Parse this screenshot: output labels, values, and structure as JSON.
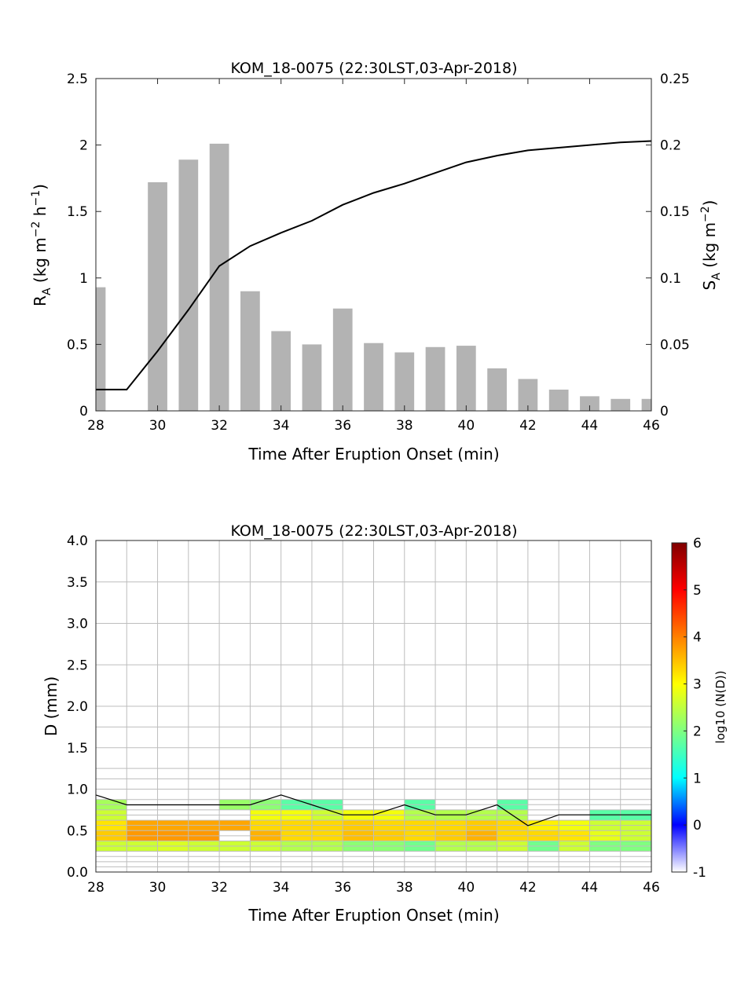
{
  "chart_data": [
    {
      "type": "bar",
      "title": "KOM_18-0075 (22:30LST,03-Apr-2018)",
      "xlabel": "Time After Eruption Onset (min)",
      "ylabel_left": "R_A (kg m^-2 h^-1)",
      "ylabel_right": "S_A (kg m^-2)",
      "xlim": [
        28,
        46
      ],
      "ylim_left": [
        0,
        2.5
      ],
      "ylim_right": [
        0,
        0.25
      ],
      "xticks": [
        "28",
        "30",
        "32",
        "34",
        "36",
        "38",
        "40",
        "42",
        "44",
        "46"
      ],
      "yticks_left": [
        "0",
        "0.5",
        "1",
        "1.5",
        "2",
        "2.5"
      ],
      "yticks_right": [
        "0",
        "0.05",
        "0.1",
        "0.15",
        "0.2",
        "0.25"
      ],
      "bar_color": "#b3b3b3",
      "line_color": "#000000",
      "bars": {
        "x": [
          28,
          30,
          31,
          32,
          33,
          34,
          35,
          36,
          37,
          38,
          39,
          40,
          41,
          42,
          43,
          44,
          45,
          46
        ],
        "values": [
          0.93,
          1.72,
          1.89,
          2.01,
          0.9,
          0.6,
          0.5,
          0.77,
          0.51,
          0.44,
          0.48,
          0.49,
          0.32,
          0.24,
          0.16,
          0.11,
          0.09,
          0.09
        ]
      },
      "line": {
        "x": [
          28,
          29,
          30,
          31,
          32,
          33,
          34,
          35,
          36,
          37,
          38,
          39,
          40,
          41,
          42,
          43,
          44,
          45,
          46
        ],
        "values": [
          0.016,
          0.016,
          0.045,
          0.076,
          0.109,
          0.124,
          0.134,
          0.143,
          0.155,
          0.164,
          0.171,
          0.179,
          0.187,
          0.192,
          0.196,
          0.198,
          0.2,
          0.202,
          0.203
        ]
      }
    },
    {
      "type": "heatmap",
      "title": "KOM_18-0075 (22:30LST,03-Apr-2018)",
      "xlabel": "Time After Eruption Onset (min)",
      "ylabel": "D (mm)",
      "colorbar_label": "log10 (N(D))",
      "xlim": [
        28,
        46
      ],
      "ylim": [
        0,
        4.0
      ],
      "clim": [
        -1,
        6
      ],
      "xticks": [
        "28",
        "30",
        "32",
        "34",
        "36",
        "38",
        "40",
        "42",
        "44",
        "46"
      ],
      "yticks": [
        "0.0",
        "0.5",
        "1.0",
        "1.5",
        "2.0",
        "2.5",
        "3.0",
        "3.5",
        "4.0"
      ],
      "cticks": [
        "-1",
        "0",
        "1",
        "2",
        "3",
        "4",
        "5",
        "6"
      ],
      "x_edges": [
        28,
        29,
        30,
        31,
        32,
        33,
        34,
        35,
        36,
        37,
        38,
        39,
        40,
        41,
        42,
        43,
        44,
        45,
        46
      ],
      "d_edges": [
        0,
        0.0625,
        0.125,
        0.1875,
        0.25,
        0.3125,
        0.375,
        0.4375,
        0.5,
        0.5625,
        0.625,
        0.6875,
        0.75,
        0.8125,
        0.875,
        1.0,
        1.125,
        1.25,
        1.5,
        1.75,
        2.0,
        2.5,
        3.0,
        3.5,
        4.0
      ],
      "cells": [
        [
          28,
          29,
          0.25,
          0.375,
          2.6
        ],
        [
          28,
          29,
          0.375,
          0.5,
          3.4
        ],
        [
          28,
          29,
          0.5,
          0.625,
          3.2
        ],
        [
          28,
          29,
          0.625,
          0.75,
          2.6
        ],
        [
          28,
          29,
          0.75,
          0.875,
          2.3
        ],
        [
          29,
          30,
          0.25,
          0.375,
          2.6
        ],
        [
          29,
          30,
          0.375,
          0.5,
          3.8
        ],
        [
          29,
          30,
          0.5,
          0.625,
          3.7
        ],
        [
          30,
          31,
          0.25,
          0.375,
          2.7
        ],
        [
          30,
          31,
          0.375,
          0.5,
          3.8
        ],
        [
          30,
          31,
          0.5,
          0.625,
          3.7
        ],
        [
          31,
          32,
          0.25,
          0.375,
          2.6
        ],
        [
          31,
          32,
          0.375,
          0.5,
          3.8
        ],
        [
          31,
          32,
          0.5,
          0.625,
          3.7
        ],
        [
          32,
          33,
          0.25,
          0.375,
          2.6
        ],
        [
          32,
          33,
          0.5,
          0.625,
          3.7
        ],
        [
          32,
          33,
          0.75,
          0.875,
          2.2
        ],
        [
          33,
          34,
          0.25,
          0.375,
          2.6
        ],
        [
          33,
          34,
          0.375,
          0.5,
          3.6
        ],
        [
          33,
          34,
          0.5,
          0.625,
          3.3
        ],
        [
          33,
          34,
          0.625,
          0.75,
          2.9
        ],
        [
          33,
          34,
          0.75,
          0.875,
          2.1
        ],
        [
          34,
          35,
          0.25,
          0.375,
          2.4
        ],
        [
          34,
          35,
          0.375,
          0.5,
          3.3
        ],
        [
          34,
          35,
          0.5,
          0.625,
          3.3
        ],
        [
          34,
          35,
          0.625,
          0.75,
          2.9
        ],
        [
          34,
          35,
          0.75,
          0.875,
          1.7
        ],
        [
          35,
          36,
          0.25,
          0.375,
          2.4
        ],
        [
          35,
          36,
          0.375,
          0.5,
          3.3
        ],
        [
          35,
          36,
          0.5,
          0.625,
          3.3
        ],
        [
          35,
          36,
          0.625,
          0.75,
          2.6
        ],
        [
          35,
          36,
          0.75,
          0.875,
          1.7
        ],
        [
          36,
          37,
          0.25,
          0.375,
          2.1
        ],
        [
          36,
          37,
          0.375,
          0.5,
          3.5
        ],
        [
          36,
          37,
          0.5,
          0.625,
          3.4
        ],
        [
          36,
          37,
          0.625,
          0.75,
          2.9
        ],
        [
          37,
          38,
          0.25,
          0.375,
          2.1
        ],
        [
          37,
          38,
          0.375,
          0.5,
          3.4
        ],
        [
          37,
          38,
          0.5,
          0.625,
          3.3
        ],
        [
          37,
          38,
          0.625,
          0.75,
          2.9
        ],
        [
          38,
          39,
          0.25,
          0.375,
          1.9
        ],
        [
          38,
          39,
          0.375,
          0.5,
          3.3
        ],
        [
          38,
          39,
          0.5,
          0.625,
          3.3
        ],
        [
          38,
          39,
          0.625,
          0.75,
          2.4
        ],
        [
          38,
          39,
          0.75,
          0.875,
          1.7
        ],
        [
          39,
          40,
          0.25,
          0.375,
          2.4
        ],
        [
          39,
          40,
          0.375,
          0.5,
          3.4
        ],
        [
          39,
          40,
          0.5,
          0.625,
          3.3
        ],
        [
          39,
          40,
          0.625,
          0.75,
          2.4
        ],
        [
          40,
          41,
          0.25,
          0.375,
          2.4
        ],
        [
          40,
          41,
          0.375,
          0.5,
          3.6
        ],
        [
          40,
          41,
          0.5,
          0.625,
          3.4
        ],
        [
          40,
          41,
          0.625,
          0.75,
          2.4
        ],
        [
          41,
          42,
          0.25,
          0.375,
          2.6
        ],
        [
          41,
          42,
          0.375,
          0.5,
          3.3
        ],
        [
          41,
          42,
          0.5,
          0.625,
          3.3
        ],
        [
          41,
          42,
          0.625,
          0.75,
          2.4
        ],
        [
          41,
          42,
          0.75,
          0.875,
          1.7
        ],
        [
          42,
          43,
          0.25,
          0.375,
          1.9
        ],
        [
          42,
          43,
          0.375,
          0.5,
          3.3
        ],
        [
          42,
          43,
          0.5,
          0.625,
          3.1
        ],
        [
          43,
          44,
          0.25,
          0.375,
          2.6
        ],
        [
          43,
          44,
          0.375,
          0.5,
          3.2
        ],
        [
          43,
          44,
          0.5,
          0.625,
          2.9
        ],
        [
          44,
          45,
          0.25,
          0.375,
          2.0
        ],
        [
          44,
          45,
          0.375,
          0.5,
          2.8
        ],
        [
          44,
          45,
          0.5,
          0.625,
          2.6
        ],
        [
          44,
          45,
          0.625,
          0.75,
          1.7
        ],
        [
          45,
          46,
          0.25,
          0.375,
          2.0
        ],
        [
          45,
          46,
          0.375,
          0.5,
          2.6
        ],
        [
          45,
          46,
          0.5,
          0.625,
          2.6
        ],
        [
          45,
          46,
          0.625,
          0.75,
          1.7
        ]
      ],
      "dmax_line": {
        "x": [
          28,
          29,
          30,
          31,
          32,
          33,
          34,
          35,
          36,
          37,
          38,
          39,
          40,
          41,
          42,
          43,
          44,
          45,
          46
        ],
        "values": [
          0.93,
          0.81,
          0.81,
          0.81,
          0.81,
          0.81,
          0.93,
          0.81,
          0.69,
          0.69,
          0.81,
          0.69,
          0.69,
          0.81,
          0.56,
          0.69,
          0.69,
          0.69,
          0.69
        ]
      }
    }
  ]
}
